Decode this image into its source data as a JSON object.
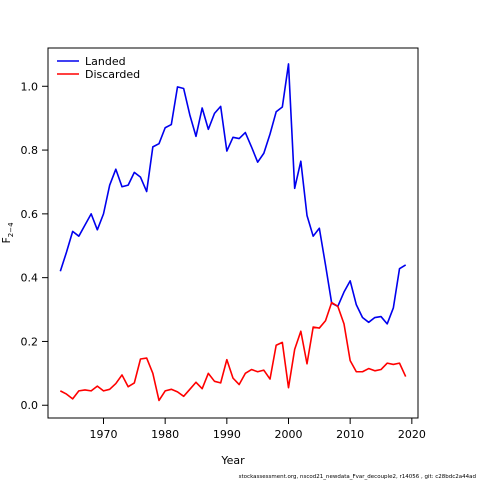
{
  "chart_data": {
    "type": "line",
    "xlabel": "Year",
    "ylabel": "F",
    "ylabel_subscript": "2−4",
    "xlim": [
      1961,
      2021
    ],
    "ylim": [
      -0.04,
      1.12
    ],
    "x_ticks": [
      1970,
      1980,
      1990,
      2000,
      2010,
      2020
    ],
    "y_ticks": [
      0.0,
      0.2,
      0.4,
      0.6,
      0.8,
      1.0
    ],
    "x_tick_labels": [
      "1970",
      "1980",
      "1990",
      "2000",
      "2010",
      "2020"
    ],
    "y_tick_labels": [
      "0.0",
      "0.2",
      "0.4",
      "0.6",
      "0.8",
      "1.0"
    ],
    "grid": false,
    "legend_position": "top-left",
    "series": [
      {
        "name": "Landed",
        "color": "#0000ee",
        "x": [
          1963,
          1964,
          1965,
          1966,
          1967,
          1968,
          1969,
          1970,
          1971,
          1972,
          1973,
          1974,
          1975,
          1976,
          1977,
          1978,
          1979,
          1980,
          1981,
          1982,
          1983,
          1984,
          1985,
          1986,
          1987,
          1988,
          1989,
          1990,
          1991,
          1992,
          1993,
          1994,
          1995,
          1996,
          1997,
          1998,
          1999,
          2000,
          2001,
          2002,
          2003,
          2004,
          2005,
          2006,
          2007,
          2008,
          2009,
          2010,
          2011,
          2012,
          2013,
          2014,
          2015,
          2016,
          2017,
          2018,
          2019
        ],
        "values": [
          0.42,
          0.48,
          0.545,
          0.53,
          0.565,
          0.6,
          0.55,
          0.6,
          0.69,
          0.74,
          0.685,
          0.69,
          0.73,
          0.715,
          0.67,
          0.81,
          0.82,
          0.87,
          0.88,
          0.998,
          0.993,
          0.91,
          0.843,
          0.932,
          0.865,
          0.915,
          0.937,
          0.797,
          0.84,
          0.836,
          0.855,
          0.81,
          0.762,
          0.79,
          0.85,
          0.92,
          0.935,
          1.07,
          0.68,
          0.765,
          0.595,
          0.53,
          0.555,
          0.44,
          0.32,
          0.31,
          0.355,
          0.39,
          0.315,
          0.275,
          0.26,
          0.275,
          0.278,
          0.255,
          0.305,
          0.428,
          0.44
        ]
      },
      {
        "name": "Discarded",
        "color": "#ff0000",
        "x": [
          1963,
          1964,
          1965,
          1966,
          1967,
          1968,
          1969,
          1970,
          1971,
          1972,
          1973,
          1974,
          1975,
          1976,
          1977,
          1978,
          1979,
          1980,
          1981,
          1982,
          1983,
          1984,
          1985,
          1986,
          1987,
          1988,
          1989,
          1990,
          1991,
          1992,
          1993,
          1994,
          1995,
          1996,
          1997,
          1998,
          1999,
          2000,
          2001,
          2002,
          2003,
          2004,
          2005,
          2006,
          2007,
          2008,
          2009,
          2010,
          2011,
          2012,
          2013,
          2014,
          2015,
          2016,
          2017,
          2018,
          2019
        ],
        "values": [
          0.045,
          0.035,
          0.02,
          0.045,
          0.048,
          0.045,
          0.06,
          0.045,
          0.05,
          0.068,
          0.095,
          0.058,
          0.07,
          0.145,
          0.148,
          0.1,
          0.015,
          0.045,
          0.05,
          0.042,
          0.028,
          0.05,
          0.072,
          0.052,
          0.1,
          0.075,
          0.07,
          0.143,
          0.085,
          0.065,
          0.1,
          0.112,
          0.105,
          0.11,
          0.082,
          0.188,
          0.197,
          0.055,
          0.175,
          0.232,
          0.13,
          0.245,
          0.242,
          0.265,
          0.322,
          0.31,
          0.255,
          0.14,
          0.105,
          0.105,
          0.115,
          0.108,
          0.112,
          0.132,
          0.128,
          0.132,
          0.09
        ]
      }
    ]
  },
  "footer": "stockassessment.org,  nscod21_newdata_Fvar_decouple2,  r14056 ,  git: c28bdc2a44ad"
}
